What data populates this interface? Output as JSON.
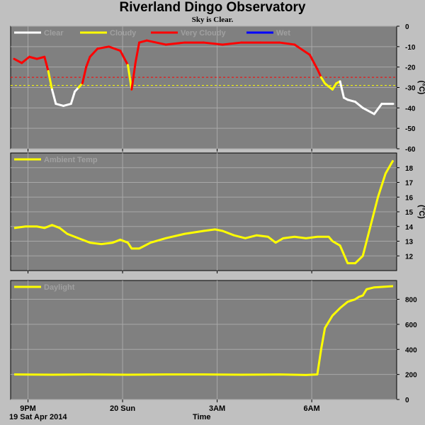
{
  "title": "Riverland Dingo Observatory",
  "subtitle": "Sky is Clear.",
  "footer": {
    "date": "19 Sat Apr 2014",
    "xlabel": "Time"
  },
  "x_ticks": [
    "9PM",
    "20 Sun",
    "3AM",
    "6AM"
  ],
  "colors": {
    "background": "#c0c0c0",
    "plot_bg": "#808080",
    "grid": "#a8a8a8",
    "clear": "#ffffff",
    "cloudy": "#ffff00",
    "very_cloudy": "#ff0000",
    "wet": "#0000ff"
  },
  "chart_data": [
    {
      "type": "line",
      "name": "sky",
      "legend": [
        {
          "label": "Clear",
          "color": "#ffffff"
        },
        {
          "label": "Cloudy",
          "color": "#ffff00"
        },
        {
          "label": "Very Cloudy",
          "color": "#ff0000"
        },
        {
          "label": "Wet",
          "color": "#0000ff"
        }
      ],
      "ylabel": "(°C)",
      "ylim": [
        -60,
        0
      ],
      "yticks": [
        "0",
        "-10",
        "-20",
        "-30",
        "-40",
        "-50",
        "-60"
      ],
      "thresholds": [
        {
          "value": -25,
          "color": "#ff0000"
        },
        {
          "value": -29,
          "color": "#ffff00"
        }
      ],
      "x": [
        0,
        0.02,
        0.04,
        0.06,
        0.08,
        0.09,
        0.1,
        0.11,
        0.13,
        0.15,
        0.16,
        0.17,
        0.18,
        0.19,
        0.2,
        0.22,
        0.25,
        0.28,
        0.3,
        0.31,
        0.32,
        0.33,
        0.35,
        0.4,
        0.45,
        0.5,
        0.55,
        0.6,
        0.65,
        0.7,
        0.74,
        0.78,
        0.8,
        0.81,
        0.82,
        0.84,
        0.85,
        0.86,
        0.87,
        0.88,
        0.9,
        0.92,
        0.95,
        0.97,
        1.0
      ],
      "y": [
        -16,
        -18,
        -15,
        -16,
        -15,
        -22,
        -31,
        -38,
        -39,
        -38,
        -32,
        -30,
        -28,
        -20,
        -15,
        -11,
        -10,
        -12,
        -19,
        -31,
        -18,
        -8,
        -7,
        -9,
        -8,
        -8,
        -9,
        -8,
        -8,
        -8,
        -9,
        -14,
        -21,
        -25,
        -28,
        -31,
        -28,
        -27,
        -35,
        -36,
        -37,
        -40,
        -43,
        -38,
        -38
      ]
    },
    {
      "type": "line",
      "name": "ambient",
      "legend": [
        {
          "label": "Ambient Temp",
          "color": "#ffff00"
        }
      ],
      "ylabel": "(°C)",
      "ylim": [
        11,
        19
      ],
      "yticks": [
        "12",
        "13",
        "14",
        "15",
        "16",
        "17",
        "18"
      ],
      "x": [
        0,
        0.03,
        0.06,
        0.08,
        0.1,
        0.12,
        0.14,
        0.17,
        0.2,
        0.23,
        0.26,
        0.28,
        0.3,
        0.31,
        0.33,
        0.36,
        0.4,
        0.45,
        0.5,
        0.53,
        0.55,
        0.58,
        0.61,
        0.64,
        0.67,
        0.69,
        0.71,
        0.74,
        0.77,
        0.8,
        0.83,
        0.84,
        0.86,
        0.88,
        0.9,
        0.92,
        0.94,
        0.96,
        0.98,
        1.0
      ],
      "y": [
        13.9,
        14.0,
        14.0,
        13.9,
        14.1,
        13.9,
        13.5,
        13.2,
        12.9,
        12.8,
        12.9,
        13.1,
        12.9,
        12.5,
        12.5,
        12.9,
        13.2,
        13.5,
        13.7,
        13.8,
        13.7,
        13.4,
        13.2,
        13.4,
        13.3,
        12.9,
        13.2,
        13.3,
        13.2,
        13.3,
        13.3,
        13.0,
        12.7,
        11.5,
        11.5,
        12.0,
        14.0,
        16.0,
        17.6,
        18.5
      ]
    },
    {
      "type": "line",
      "name": "daylight",
      "legend": [
        {
          "label": "Daylight",
          "color": "#ffff00"
        }
      ],
      "ylim": [
        0,
        950
      ],
      "yticks": [
        "0",
        "200",
        "400",
        "600",
        "800"
      ],
      "x": [
        0,
        0.1,
        0.2,
        0.3,
        0.4,
        0.5,
        0.6,
        0.7,
        0.77,
        0.8,
        0.81,
        0.82,
        0.84,
        0.86,
        0.88,
        0.9,
        0.91,
        0.92,
        0.93,
        0.95,
        1.0
      ],
      "y": [
        200,
        198,
        200,
        198,
        200,
        200,
        198,
        200,
        196,
        200,
        400,
        570,
        670,
        730,
        780,
        800,
        820,
        830,
        880,
        895,
        905
      ]
    }
  ]
}
